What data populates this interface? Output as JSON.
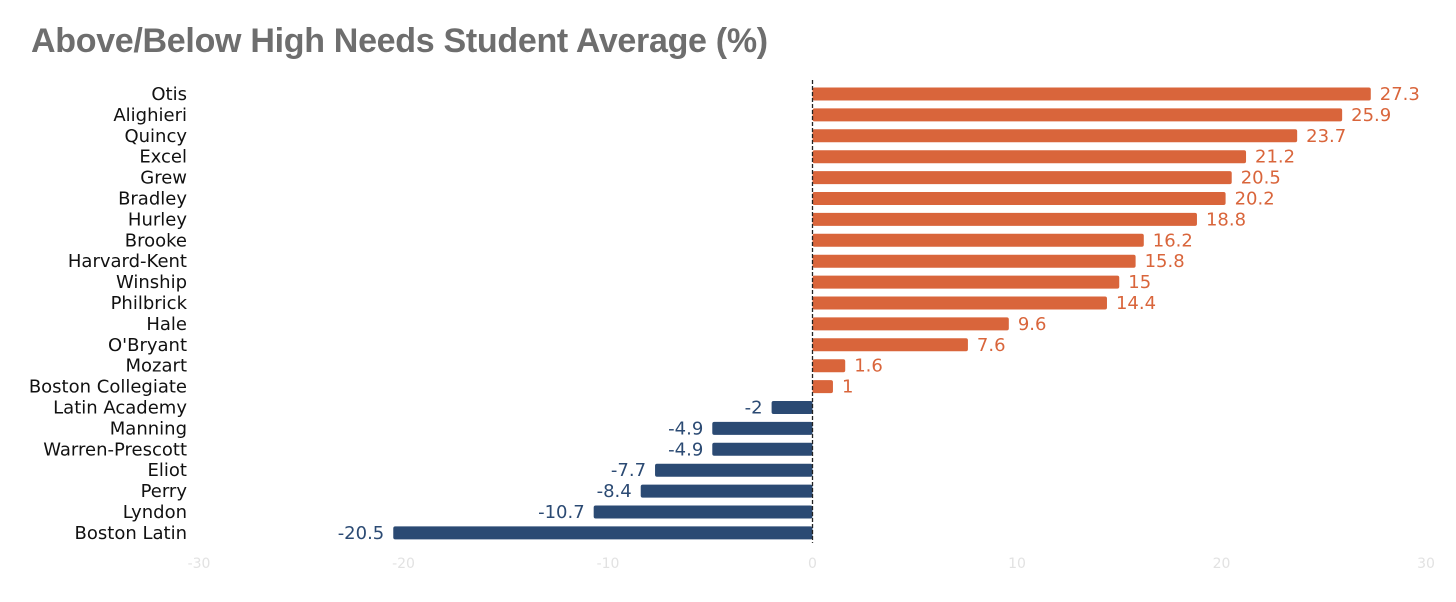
{
  "chart_data": {
    "type": "bar",
    "orientation": "horizontal",
    "title": "Above/Below High Needs Student Average (%)",
    "xlabel": "",
    "ylabel": "",
    "xlim": [
      -30,
      30
    ],
    "xticks": [
      "-30",
      "-20",
      "-10",
      "0",
      "10",
      "20",
      "30"
    ],
    "grid": false,
    "legend": "none",
    "categories": [
      "Otis",
      "Alighieri",
      "Quincy",
      "Excel",
      "Grew",
      "Bradley",
      "Hurley",
      "Brooke",
      "Harvard-Kent",
      "Winship",
      "Philbrick",
      "Hale",
      "O'Bryant",
      "Mozart",
      "Boston Collegiate",
      "Latin Academy",
      "Manning",
      "Warren-Prescott",
      "Eliot",
      "Perry",
      "Lyndon",
      "Boston Latin"
    ],
    "values": [
      27.3,
      25.9,
      23.7,
      21.2,
      20.5,
      20.2,
      18.8,
      16.2,
      15.8,
      15,
      14.4,
      9.6,
      7.6,
      1.6,
      1,
      -2,
      -4.9,
      -4.9,
      -7.7,
      -8.4,
      -10.7,
      -20.5
    ],
    "value_labels": [
      "27.3",
      "25.9",
      "23.7",
      "21.2",
      "20.5",
      "20.2",
      "18.8",
      "16.2",
      "15.8",
      "15",
      "14.4",
      "9.6",
      "7.6",
      "1.6",
      "1",
      "-2",
      "-4.9",
      "-4.9",
      "-7.7",
      "-8.4",
      "-10.7",
      "-20.5"
    ],
    "colors": {
      "positive": "#d9653b",
      "negative": "#2b4a73",
      "axis": "#222222",
      "tick_text": "#e2e2e2",
      "category_text": "#111111"
    }
  }
}
